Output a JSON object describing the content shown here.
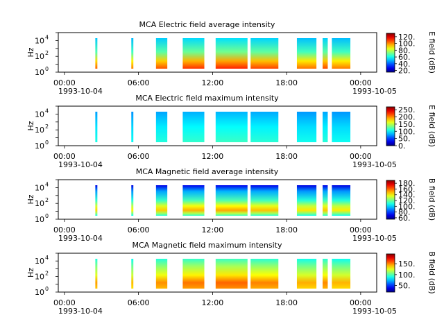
{
  "chart_data": [
    {
      "type": "heatmap",
      "title": "MCA  Electric field average intensity",
      "ylabel": "Hz",
      "colorbar_label": "E field (dB)",
      "colorbar_ticks": [
        "120.",
        "100.",
        "80.",
        "60.",
        "40.",
        "20."
      ],
      "colorbar_range": [
        15,
        130
      ],
      "y_ticks": [
        "10",
        "10",
        "10"
      ],
      "y_tick_exponents": [
        "4",
        "2",
        "0"
      ],
      "y_scale": "log",
      "y_range": [
        1,
        100000
      ],
      "x_ticks": [
        "00:00",
        "06:00",
        "12:00",
        "18:00",
        "00:00"
      ],
      "x_start_label": "1993-10-04",
      "x_end_label": "1993-10-05",
      "profile": "e_avg"
    },
    {
      "type": "heatmap",
      "title": "MCA  Electric field maximum intensity",
      "ylabel": "Hz",
      "colorbar_label": "E field (dB)",
      "colorbar_ticks": [
        "250.",
        "200.",
        "150.",
        "100.",
        "50.",
        "0."
      ],
      "colorbar_range": [
        0,
        270
      ],
      "y_ticks": [
        "10",
        "10",
        "10"
      ],
      "y_tick_exponents": [
        "4",
        "2",
        "0"
      ],
      "y_scale": "log",
      "y_range": [
        1,
        100000
      ],
      "x_ticks": [
        "00:00",
        "06:00",
        "12:00",
        "18:00",
        "00:00"
      ],
      "x_start_label": "1993-10-04",
      "x_end_label": "1993-10-05",
      "profile": "e_max"
    },
    {
      "type": "heatmap",
      "title": "MCA  Magnetic field average intensity",
      "ylabel": "Hz",
      "colorbar_label": "B field (dB)",
      "colorbar_ticks": [
        "180.",
        "160.",
        "140.",
        "120.",
        "100.",
        "80.",
        "60."
      ],
      "colorbar_range": [
        55,
        190
      ],
      "y_ticks": [
        "10",
        "10",
        "10"
      ],
      "y_tick_exponents": [
        "4",
        "2",
        "0"
      ],
      "y_scale": "log",
      "y_range": [
        1,
        100000
      ],
      "x_ticks": [
        "00:00",
        "06:00",
        "12:00",
        "18:00",
        "00:00"
      ],
      "x_start_label": "1993-10-04",
      "x_end_label": "1993-10-05",
      "profile": "b_avg"
    },
    {
      "type": "heatmap",
      "title": "MCA  Magnetic field maximum intensity",
      "ylabel": "Hz",
      "colorbar_label": "B field (dB)",
      "colorbar_ticks": [
        "150.",
        "100.",
        "50."
      ],
      "colorbar_range": [
        20,
        195
      ],
      "y_ticks": [
        "10",
        "10",
        "10"
      ],
      "y_tick_exponents": [
        "4",
        "2",
        "0"
      ],
      "y_scale": "log",
      "y_range": [
        1,
        100000
      ],
      "x_ticks": [
        "00:00",
        "06:00",
        "12:00",
        "18:00",
        "00:00"
      ],
      "x_start_label": "1993-10-04",
      "x_end_label": "1993-10-05",
      "profile": "b_max"
    }
  ],
  "data_segments_utc": [
    [
      "02:30",
      "02:40"
    ],
    [
      "05:25",
      "05:35"
    ],
    [
      "07:25",
      "08:20"
    ],
    [
      "09:35",
      "11:20"
    ],
    [
      "12:15",
      "14:50"
    ],
    [
      "15:05",
      "17:20"
    ],
    [
      "18:50",
      "20:25"
    ],
    [
      "20:55",
      "21:20"
    ],
    [
      "21:40",
      "23:10"
    ]
  ],
  "x_range_hours": [
    -0.5,
    25.3
  ]
}
